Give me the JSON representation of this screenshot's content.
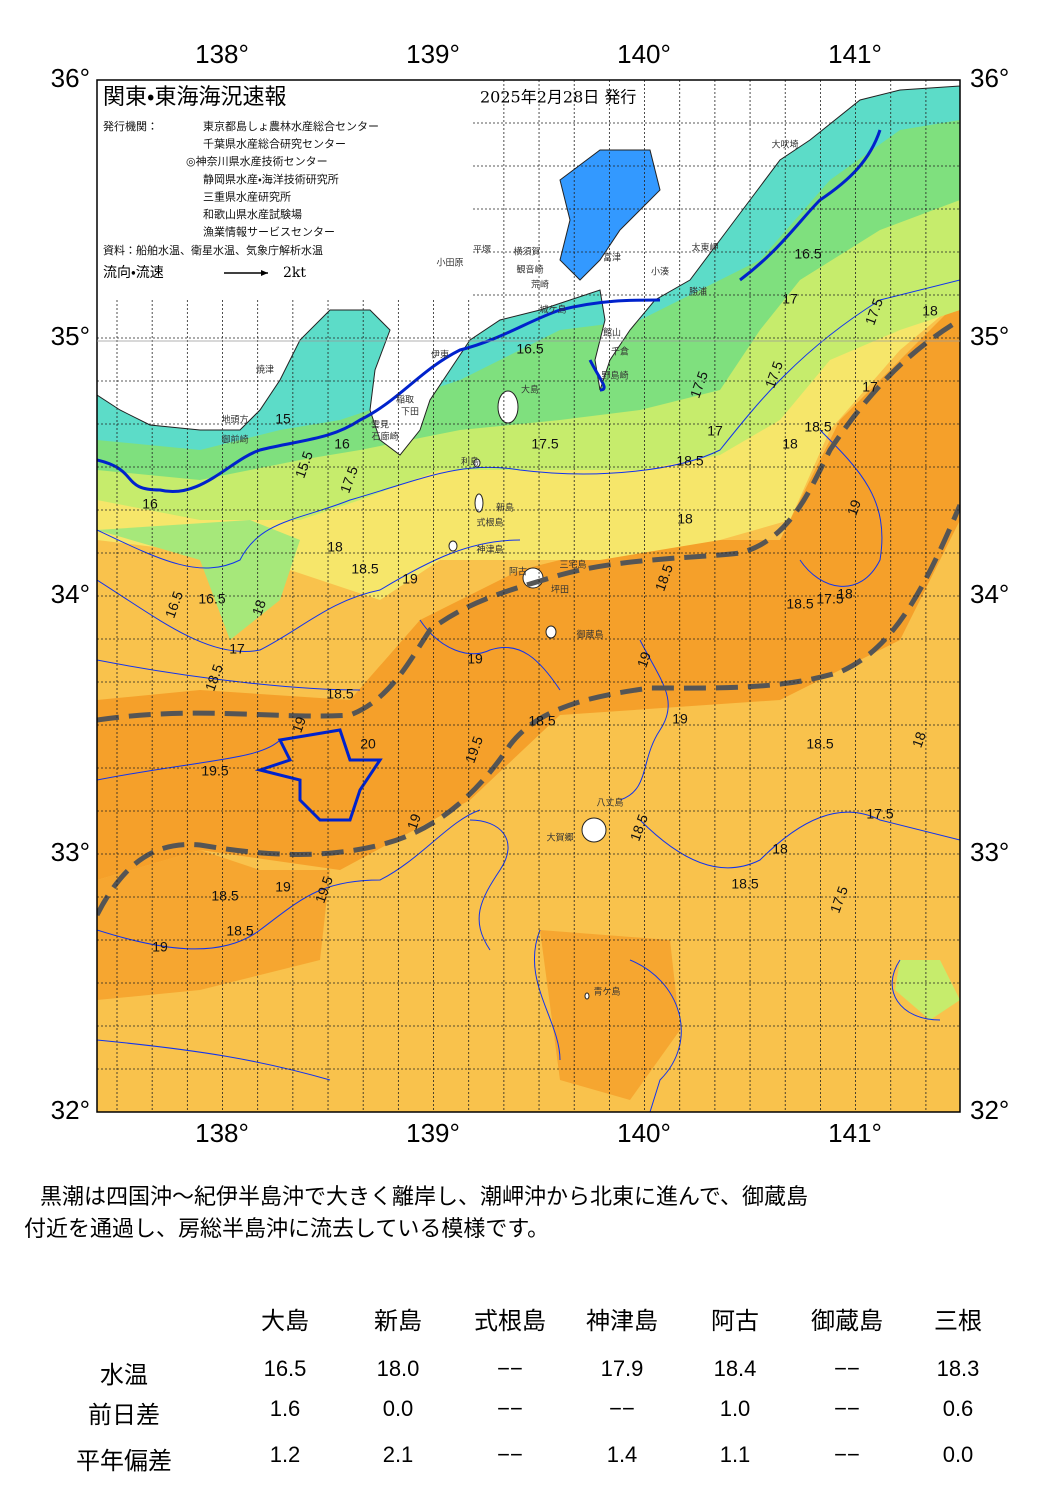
{
  "map": {
    "title": "関東・東海海況速報",
    "date": "2025年2月28日 発行",
    "issuer_label": "発行機関：",
    "issuers": [
      "東京都島しょ農林水産総合センター",
      "千葉県水産総合研究センター",
      "◎神奈川県水産技術センター",
      "静岡県水産・海洋技術研究所",
      "三重県水産研究所",
      "和歌山県水産試験場",
      "漁業情報サービスセンター"
    ],
    "source": "資料：船舶水温、衛星水温、気象庁解析水温",
    "legend_label": "流向・流速",
    "legend_speed": "2kt",
    "lon_labels": [
      "138°",
      "139°",
      "140°",
      "141°"
    ],
    "lat_labels": [
      "36°",
      "35°",
      "34°",
      "33°",
      "32°"
    ],
    "place_names": [
      "大吠埼",
      "太東岬",
      "勝浦",
      "小湊",
      "富津",
      "横須賀",
      "観音崎",
      "平塚",
      "小田原",
      "荒崎",
      "城ケ島",
      "館山",
      "千倉",
      "野島崎",
      "大島",
      "伊東",
      "焼津",
      "稲取",
      "下田",
      "雲見",
      "石廊崎",
      "地頭方",
      "御前崎",
      "利島",
      "新島",
      "式根島",
      "神津島",
      "阿古",
      "三宅島",
      "坪田",
      "御蔵島",
      "八丈島",
      "大賀郷",
      "青ケ島"
    ],
    "contour_labels": [
      "15",
      "15.5",
      "16",
      "16",
      "16.5",
      "16.5",
      "17",
      "17.5",
      "18",
      "18.5",
      "18.5",
      "19",
      "19",
      "19.5",
      "19.5",
      "20",
      "19",
      "18.5",
      "18.5",
      "19.5",
      "19",
      "18.5",
      "19",
      "18.5",
      "19",
      "18",
      "17.5",
      "18.5",
      "17.5",
      "17",
      "18",
      "18.5",
      "18",
      "18.5",
      "19",
      "17.5",
      "17",
      "18",
      "18.5",
      "18",
      "17.5",
      "17.5",
      "18",
      "19",
      "16.5",
      "17",
      "17.5",
      "18",
      "16.5",
      "17.5",
      "18.5",
      "19",
      "18.5",
      "18.5"
    ]
  },
  "summary": [
    "黒潮は四国沖～紀伊半島沖で大きく離岸し、潮岬沖から北東に進んで、御蔵島",
    "付近を通過し、房総半島沖に流去している模様です。"
  ],
  "table": {
    "columns": [
      "大島",
      "新島",
      "式根島",
      "神津島",
      "阿古",
      "御蔵島",
      "三根"
    ],
    "rows": [
      {
        "label": "水温",
        "values": [
          "16.5",
          "18.0",
          "−−",
          "17.9",
          "18.4",
          "−−",
          "18.3"
        ]
      },
      {
        "label": "前日差",
        "values": [
          "1.6",
          "0.0",
          "−−",
          "−−",
          "1.0",
          "−−",
          "0.6"
        ]
      },
      {
        "label": "平年偏差",
        "values": [
          "1.2",
          "2.1",
          "−−",
          "1.4",
          "1.1",
          "−−",
          "0.0"
        ]
      }
    ]
  }
}
